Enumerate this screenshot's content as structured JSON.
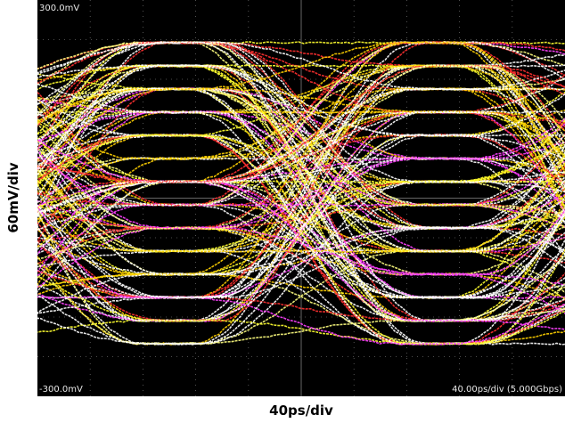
{
  "screen": {
    "top_label": "300.0mV",
    "bottom_label": "-300.0mV",
    "timebase_label": "40.00ps/div (5.000Gbps)"
  },
  "axes": {
    "y_label": "60mV/div",
    "x_label": "40ps/div"
  }
}
